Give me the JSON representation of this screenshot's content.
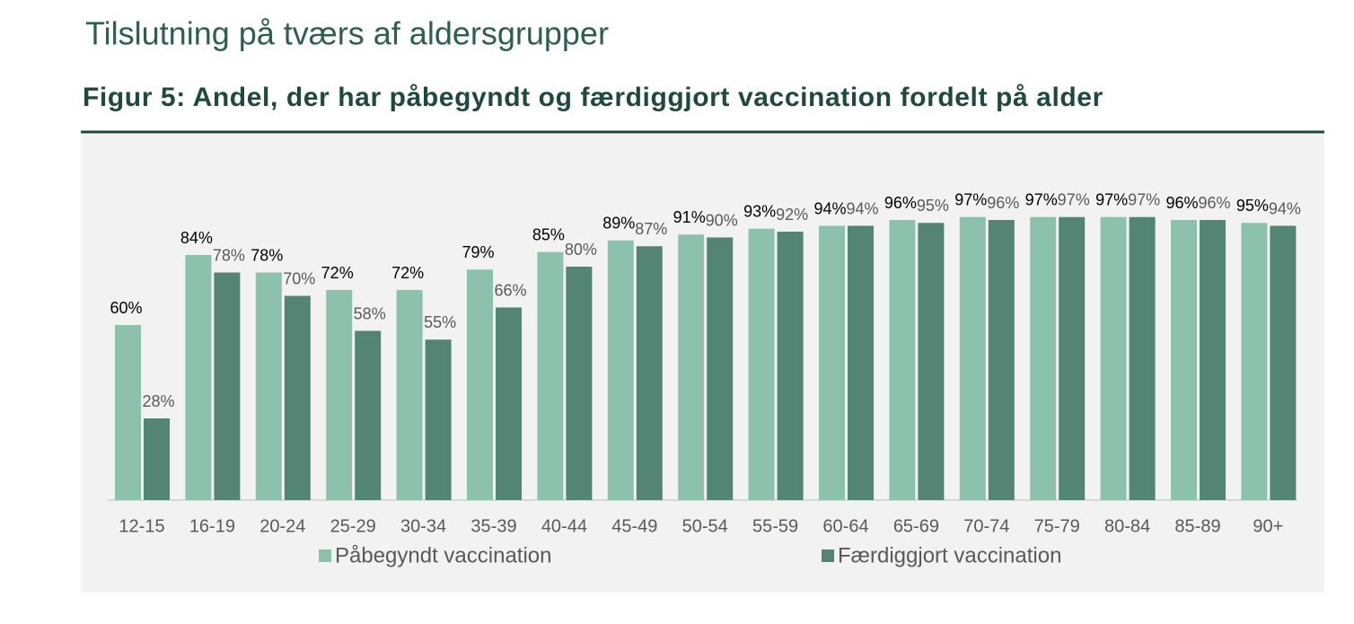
{
  "heading": "Tilslutning på tværs af aldersgrupper",
  "chart_data": {
    "type": "bar",
    "title": "Figur 5: Andel, der har påbegyndt og færdiggjort vaccination fordelt på alder",
    "categories": [
      "12-15",
      "16-19",
      "20-24",
      "25-29",
      "30-34",
      "35-39",
      "40-44",
      "45-49",
      "50-54",
      "55-59",
      "60-64",
      "65-69",
      "70-74",
      "75-79",
      "80-84",
      "85-89",
      "90+"
    ],
    "series": [
      {
        "name": "Påbegyndt vaccination",
        "color": "#8cc2ab",
        "values": [
          60,
          84,
          78,
          72,
          72,
          79,
          85,
          89,
          91,
          93,
          94,
          96,
          97,
          97,
          97,
          96,
          95
        ],
        "value_labels": [
          "60%",
          "84%",
          "78%",
          "72%",
          "72%",
          "79%",
          "85%",
          "89%",
          "91%",
          "93%",
          "94%",
          "96%",
          "97%",
          "97%",
          "97%",
          "96%",
          "95%"
        ]
      },
      {
        "name": "Færdiggjort vaccination",
        "color": "#548473",
        "values": [
          28,
          78,
          70,
          58,
          55,
          66,
          80,
          87,
          90,
          92,
          94,
          95,
          96,
          97,
          97,
          96,
          94
        ],
        "value_labels": [
          "28%",
          "78%",
          "70%",
          "58%",
          "55%",
          "66%",
          "80%",
          "87%",
          "90%",
          "92%",
          "94%",
          "95%",
          "96%",
          "97%",
          "97%",
          "96%",
          "94%"
        ]
      }
    ],
    "ylim": [
      0,
      100
    ],
    "legend": "bottom"
  }
}
